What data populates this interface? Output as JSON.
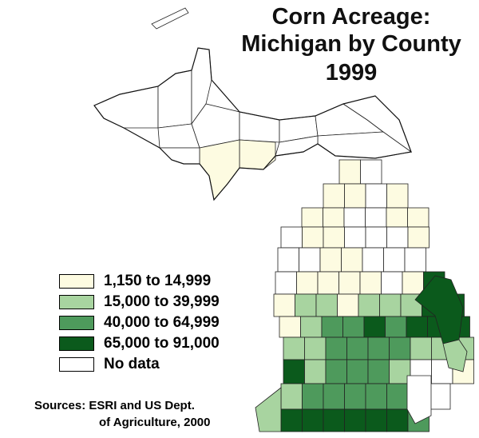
{
  "title": [
    "Corn Acreage:",
    "Michigan by County",
    "1999"
  ],
  "legend": [
    {
      "label": "1,150 to 14,999",
      "color": "#fdfbe1"
    },
    {
      "label": "15,000 to 39,999",
      "color": "#a8d4a0"
    },
    {
      "label": "40,000 to 64,999",
      "color": "#4e9a5c"
    },
    {
      "label": "65,000 to 91,000",
      "color": "#0b5a1c"
    },
    {
      "label": "No data",
      "color": "#ffffff"
    }
  ],
  "source": [
    "Sources:  ESRI and US Dept.",
    "of Agriculture, 2000"
  ]
}
